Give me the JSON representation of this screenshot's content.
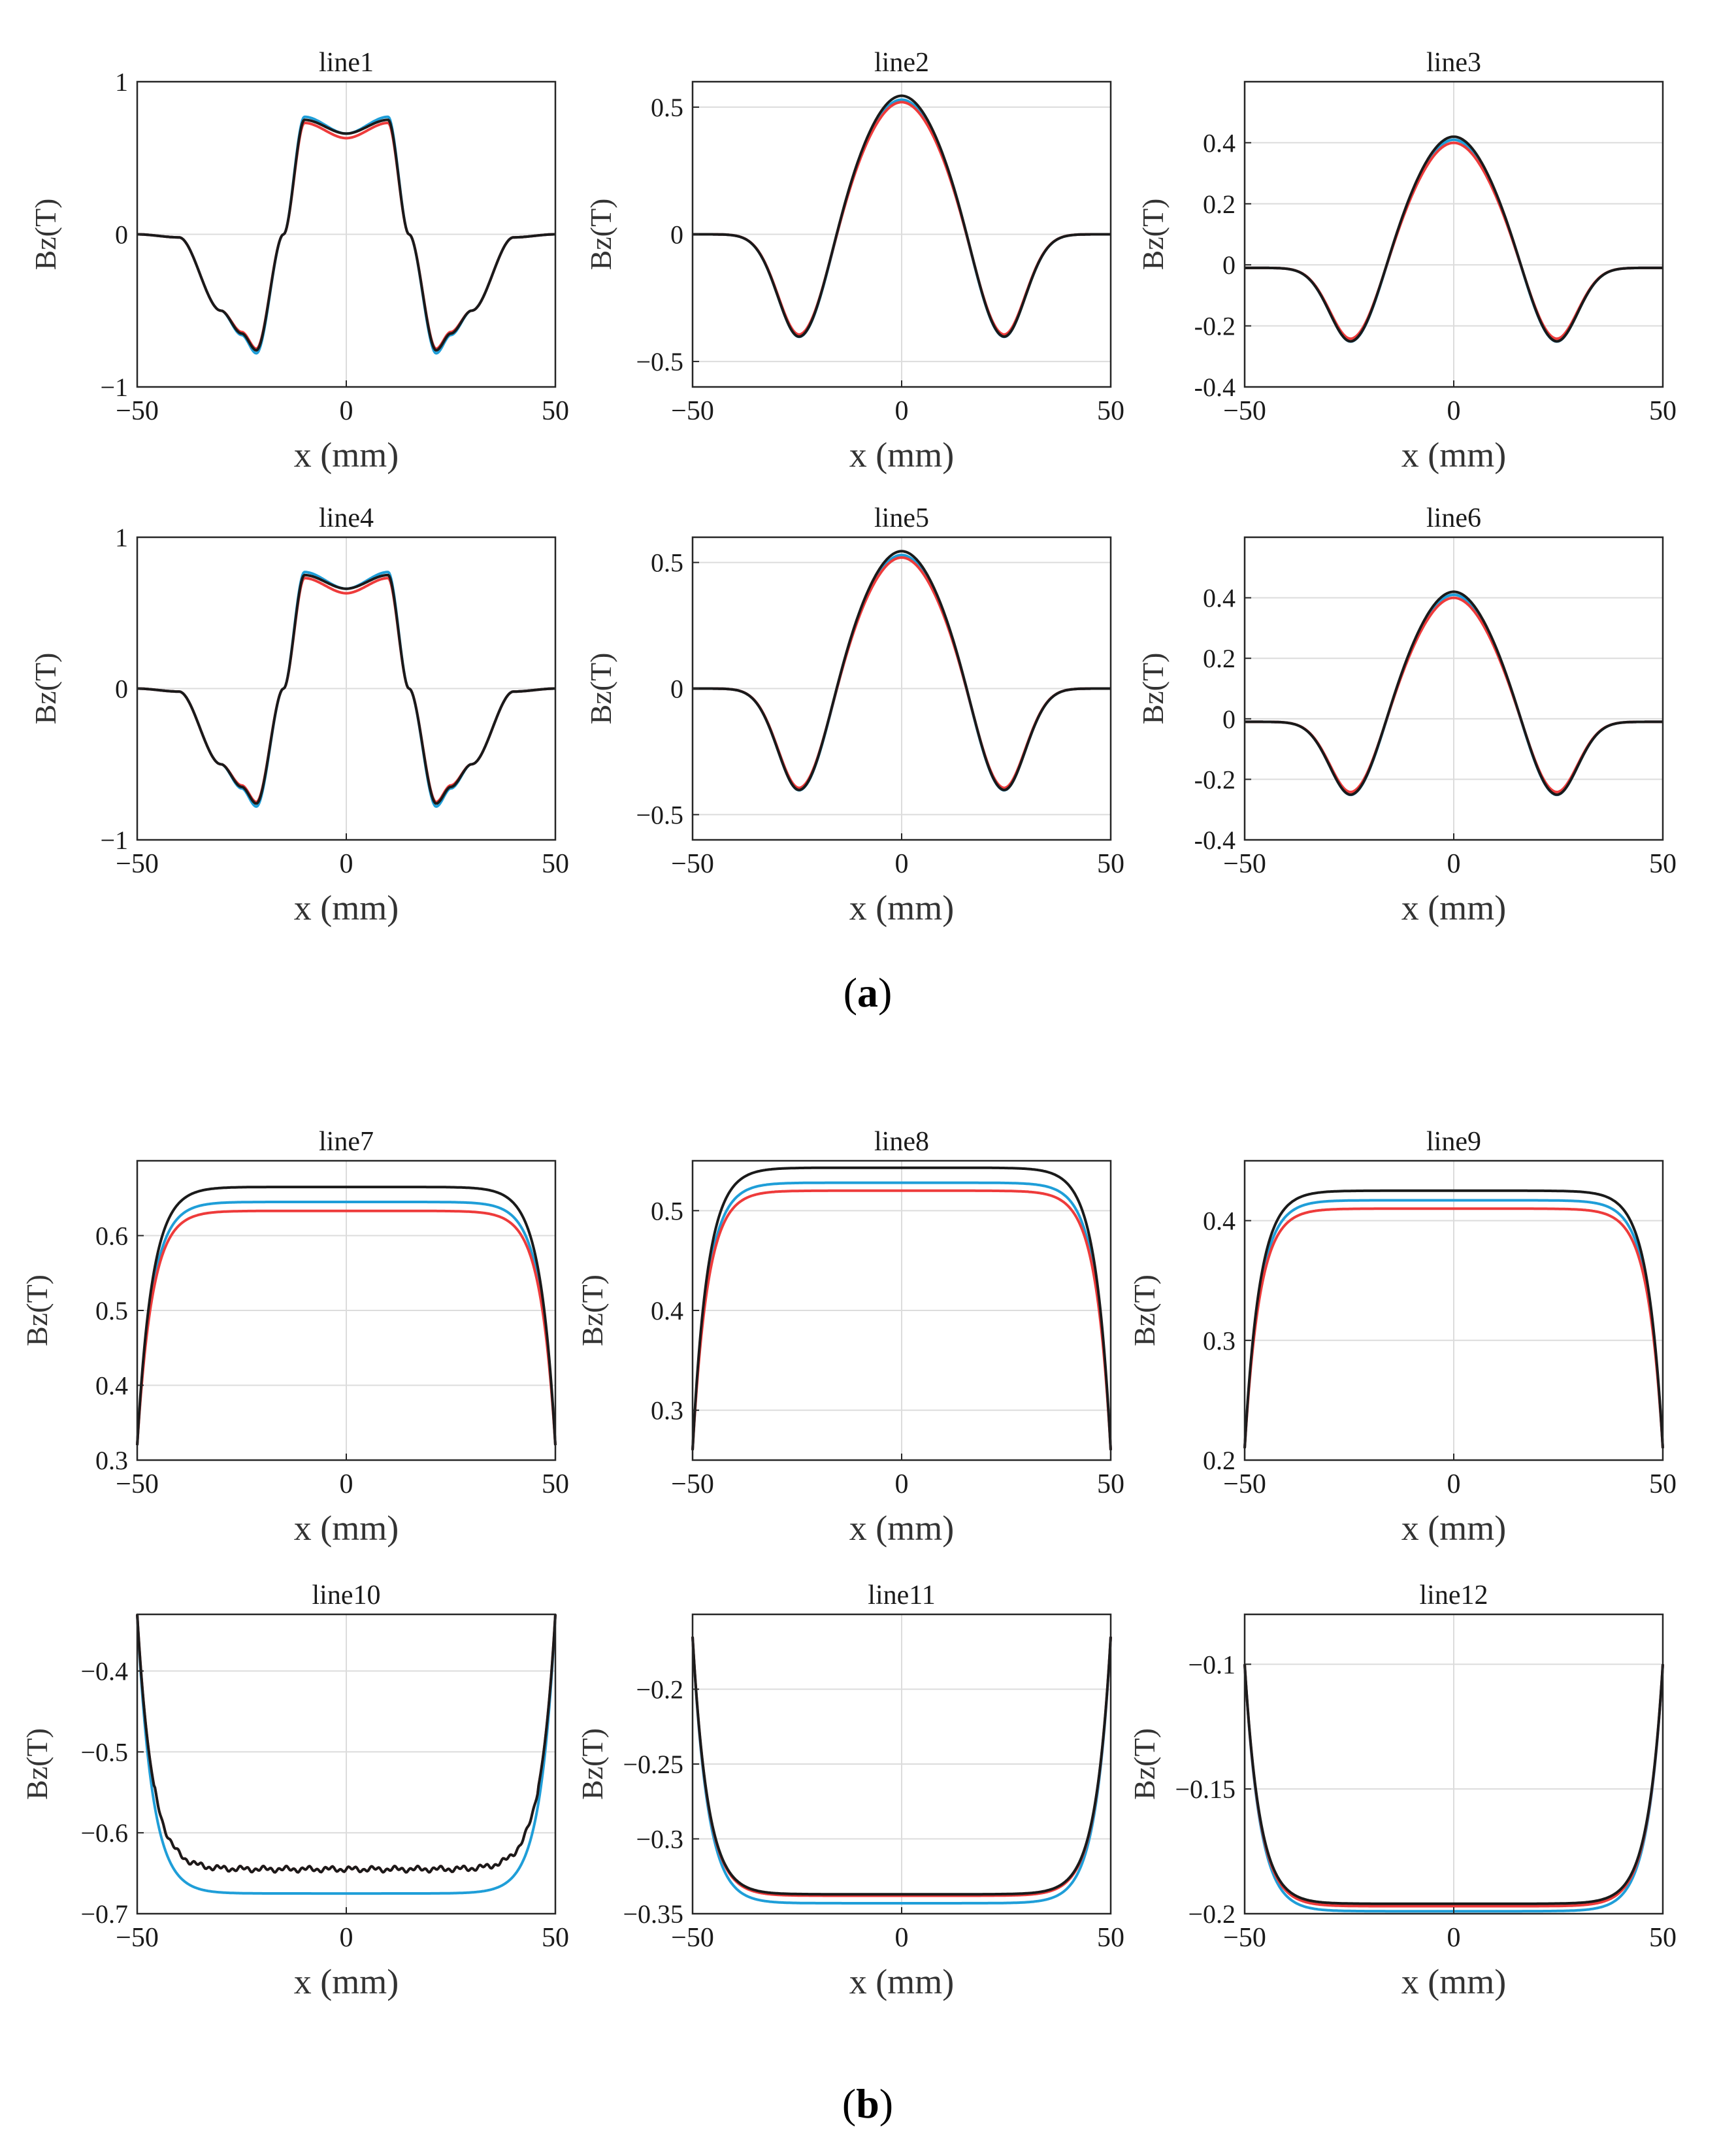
{
  "figure": {
    "panel_labels": {
      "a": "a",
      "b": "b"
    },
    "series_colors": {
      "black": "#1a1a1a",
      "blue": "#1f9ed8",
      "red": "#ee3b3b"
    }
  },
  "chart_data": [
    {
      "id": "line1",
      "type": "line",
      "title": "line1",
      "xlabel": "x (mm)",
      "ylabel": "Bz(T)",
      "xlim": [
        -50,
        50
      ],
      "ylim": [
        -1,
        1
      ],
      "xticks": [
        -50,
        0,
        50
      ],
      "yticks": [
        -1,
        0,
        1
      ],
      "ytick_labels": [
        "−1",
        "0",
        "1"
      ],
      "grid": true,
      "legend": "none",
      "shape": "m",
      "series": [
        {
          "name": "black",
          "x": [
            -50,
            -40,
            -30,
            -25,
            -21.5,
            -15,
            -10,
            0,
            10,
            15,
            21.5,
            25,
            30,
            40,
            50
          ],
          "y": [
            0,
            -0.02,
            -0.5,
            -0.65,
            -0.76,
            0.0,
            0.75,
            0.66,
            0.75,
            0.0,
            -0.76,
            -0.65,
            -0.5,
            -0.02,
            0
          ]
        },
        {
          "name": "blue",
          "x": [
            -50,
            -40,
            -30,
            -25,
            -21.5,
            -15,
            -10,
            0,
            10,
            15,
            21.5,
            25,
            30,
            40,
            50
          ],
          "y": [
            0,
            -0.02,
            -0.5,
            -0.66,
            -0.78,
            0.0,
            0.77,
            0.66,
            0.77,
            0.0,
            -0.78,
            -0.66,
            -0.5,
            -0.02,
            0
          ]
        },
        {
          "name": "red",
          "x": [
            -50,
            -40,
            -30,
            -25,
            -21.5,
            -15,
            -10,
            0,
            10,
            15,
            21.5,
            25,
            30,
            40,
            50
          ],
          "y": [
            0,
            -0.02,
            -0.5,
            -0.64,
            -0.75,
            0.0,
            0.73,
            0.63,
            0.73,
            0.0,
            -0.75,
            -0.64,
            -0.5,
            -0.02,
            0
          ]
        }
      ]
    },
    {
      "id": "line2",
      "type": "line",
      "title": "line2",
      "xlabel": "x (mm)",
      "ylabel": "Bz(T)",
      "xlim": [
        -50,
        50
      ],
      "ylim": [
        -0.6,
        0.6
      ],
      "xticks": [
        -50,
        0,
        50
      ],
      "yticks": [
        -0.5,
        0,
        0.5
      ],
      "ytick_labels": [
        "−0.5",
        "0",
        "0.5"
      ],
      "grid": true,
      "legend": "none",
      "shape": "bell",
      "series": [
        {
          "name": "black",
          "x": [
            -50,
            -24,
            0,
            24,
            50
          ],
          "y": [
            0,
            -0.44,
            0.545,
            -0.44,
            0
          ]
        },
        {
          "name": "blue",
          "x": [
            -50,
            -24,
            0,
            24,
            50
          ],
          "y": [
            0,
            -0.44,
            0.53,
            -0.44,
            0
          ]
        },
        {
          "name": "red",
          "x": [
            -50,
            -24,
            0,
            24,
            50
          ],
          "y": [
            0,
            -0.43,
            0.52,
            -0.43,
            0
          ]
        }
      ]
    },
    {
      "id": "line3",
      "type": "line",
      "title": "line3",
      "xlabel": "x (mm)",
      "ylabel": "Bz(T)",
      "xlim": [
        -50,
        50
      ],
      "ylim": [
        -0.4,
        0.6
      ],
      "xticks": [
        -50,
        0,
        50
      ],
      "yticks": [
        -0.4,
        -0.2,
        0,
        0.2,
        0.4
      ],
      "ytick_labels": [
        "-0.4",
        "-0.2",
        "0",
        "0.2",
        "0.4"
      ],
      "grid": true,
      "legend": "none",
      "shape": "bell",
      "series": [
        {
          "name": "black",
          "x": [
            -50,
            -24,
            0,
            24,
            50
          ],
          "y": [
            -0.01,
            -0.28,
            0.43,
            -0.28,
            -0.01
          ]
        },
        {
          "name": "blue",
          "x": [
            -50,
            -24,
            0,
            24,
            50
          ],
          "y": [
            -0.01,
            -0.28,
            0.42,
            -0.28,
            -0.01
          ]
        },
        {
          "name": "red",
          "x": [
            -50,
            -24,
            0,
            24,
            50
          ],
          "y": [
            -0.01,
            -0.27,
            0.41,
            -0.27,
            -0.01
          ]
        }
      ]
    },
    {
      "id": "line4",
      "type": "line",
      "title": "line4",
      "xlabel": "x (mm)",
      "ylabel": "Bz(T)",
      "xlim": [
        -50,
        50
      ],
      "ylim": [
        -1,
        1
      ],
      "xticks": [
        -50,
        0,
        50
      ],
      "yticks": [
        -1,
        0,
        1
      ],
      "ytick_labels": [
        "−1",
        "0",
        "1"
      ],
      "grid": true,
      "legend": "none",
      "shape": "m",
      "series": [
        {
          "name": "black",
          "x": [
            -50,
            -40,
            -30,
            -25,
            -21.5,
            -15,
            -10,
            0,
            10,
            15,
            21.5,
            25,
            30,
            40,
            50
          ],
          "y": [
            0,
            -0.02,
            -0.5,
            -0.65,
            -0.76,
            0.0,
            0.75,
            0.66,
            0.75,
            0.0,
            -0.76,
            -0.65,
            -0.5,
            -0.02,
            0
          ]
        },
        {
          "name": "blue",
          "x": [
            -50,
            -40,
            -30,
            -25,
            -21.5,
            -15,
            -10,
            0,
            10,
            15,
            21.5,
            25,
            30,
            40,
            50
          ],
          "y": [
            0,
            -0.02,
            -0.5,
            -0.66,
            -0.78,
            0.0,
            0.77,
            0.66,
            0.77,
            0.0,
            -0.78,
            -0.66,
            -0.5,
            -0.02,
            0
          ]
        },
        {
          "name": "red",
          "x": [
            -50,
            -40,
            -30,
            -25,
            -21.5,
            -15,
            -10,
            0,
            10,
            15,
            21.5,
            25,
            30,
            40,
            50
          ],
          "y": [
            0,
            -0.02,
            -0.5,
            -0.64,
            -0.75,
            0.0,
            0.73,
            0.63,
            0.73,
            0.0,
            -0.75,
            -0.64,
            -0.5,
            -0.02,
            0
          ]
        }
      ]
    },
    {
      "id": "line5",
      "type": "line",
      "title": "line5",
      "xlabel": "x (mm)",
      "ylabel": "Bz(T)",
      "xlim": [
        -50,
        50
      ],
      "ylim": [
        -0.6,
        0.6
      ],
      "xticks": [
        -50,
        0,
        50
      ],
      "yticks": [
        -0.5,
        0,
        0.5
      ],
      "ytick_labels": [
        "−0.5",
        "0",
        "0.5"
      ],
      "grid": true,
      "legend": "none",
      "shape": "bell",
      "series": [
        {
          "name": "black",
          "x": [
            -50,
            -24,
            0,
            24,
            50
          ],
          "y": [
            0,
            -0.44,
            0.545,
            -0.44,
            0
          ]
        },
        {
          "name": "blue",
          "x": [
            -50,
            -24,
            0,
            24,
            50
          ],
          "y": [
            0,
            -0.44,
            0.53,
            -0.44,
            0
          ]
        },
        {
          "name": "red",
          "x": [
            -50,
            -24,
            0,
            24,
            50
          ],
          "y": [
            0,
            -0.43,
            0.52,
            -0.43,
            0
          ]
        }
      ]
    },
    {
      "id": "line6",
      "type": "line",
      "title": "line6",
      "xlabel": "x (mm)",
      "ylabel": "Bz(T)",
      "xlim": [
        -50,
        50
      ],
      "ylim": [
        -0.4,
        0.6
      ],
      "xticks": [
        -50,
        0,
        50
      ],
      "yticks": [
        -0.4,
        -0.2,
        0,
        0.2,
        0.4
      ],
      "ytick_labels": [
        "-0.4",
        "-0.2",
        "0",
        "0.2",
        "0.4"
      ],
      "grid": true,
      "legend": "none",
      "shape": "bell",
      "series": [
        {
          "name": "black",
          "x": [
            -50,
            -24,
            0,
            24,
            50
          ],
          "y": [
            -0.01,
            -0.28,
            0.43,
            -0.28,
            -0.01
          ]
        },
        {
          "name": "blue",
          "x": [
            -50,
            -24,
            0,
            24,
            50
          ],
          "y": [
            -0.01,
            -0.28,
            0.42,
            -0.28,
            -0.01
          ]
        },
        {
          "name": "red",
          "x": [
            -50,
            -24,
            0,
            24,
            50
          ],
          "y": [
            -0.01,
            -0.27,
            0.41,
            -0.27,
            -0.01
          ]
        }
      ]
    },
    {
      "id": "line7",
      "type": "line",
      "title": "line7",
      "xlabel": "x (mm)",
      "ylabel": "Bz(T)",
      "xlim": [
        -50,
        50
      ],
      "ylim": [
        0.3,
        0.7
      ],
      "xticks": [
        -50,
        0,
        50
      ],
      "yticks": [
        0.3,
        0.4,
        0.5,
        0.6
      ],
      "ytick_labels": [
        "0.3",
        "0.4",
        "0.5",
        "0.6"
      ],
      "grid": true,
      "legend": "none",
      "shape": "plateau",
      "series": [
        {
          "name": "black",
          "x": [
            -50,
            0,
            50
          ],
          "y": [
            0.32,
            0.665,
            0.32
          ]
        },
        {
          "name": "blue",
          "x": [
            -50,
            0,
            50
          ],
          "y": [
            0.32,
            0.645,
            0.32
          ]
        },
        {
          "name": "red",
          "x": [
            -50,
            0,
            50
          ],
          "y": [
            0.32,
            0.633,
            0.32
          ]
        }
      ]
    },
    {
      "id": "line8",
      "type": "line",
      "title": "line8",
      "xlabel": "x (mm)",
      "ylabel": "Bz(T)",
      "xlim": [
        -50,
        50
      ],
      "ylim": [
        0.25,
        0.55
      ],
      "xticks": [
        -50,
        0,
        50
      ],
      "yticks": [
        0.3,
        0.4,
        0.5
      ],
      "ytick_labels": [
        "0.3",
        "0.4",
        "0.5"
      ],
      "grid": true,
      "legend": "none",
      "shape": "plateau",
      "series": [
        {
          "name": "black",
          "x": [
            -50,
            0,
            50
          ],
          "y": [
            0.26,
            0.543,
            0.26
          ]
        },
        {
          "name": "blue",
          "x": [
            -50,
            0,
            50
          ],
          "y": [
            0.26,
            0.528,
            0.26
          ]
        },
        {
          "name": "red",
          "x": [
            -50,
            0,
            50
          ],
          "y": [
            0.26,
            0.52,
            0.26
          ]
        }
      ]
    },
    {
      "id": "line9",
      "type": "line",
      "title": "line9",
      "xlabel": "x (mm)",
      "ylabel": "Bz(T)",
      "xlim": [
        -50,
        50
      ],
      "ylim": [
        0.2,
        0.45
      ],
      "xticks": [
        -50,
        0,
        50
      ],
      "yticks": [
        0.2,
        0.3,
        0.4
      ],
      "ytick_labels": [
        "0.2",
        "0.3",
        "0.4"
      ],
      "grid": true,
      "legend": "none",
      "shape": "plateau",
      "series": [
        {
          "name": "black",
          "x": [
            -50,
            0,
            50
          ],
          "y": [
            0.21,
            0.425,
            0.21
          ]
        },
        {
          "name": "blue",
          "x": [
            -50,
            0,
            50
          ],
          "y": [
            0.21,
            0.417,
            0.21
          ]
        },
        {
          "name": "red",
          "x": [
            -50,
            0,
            50
          ],
          "y": [
            0.21,
            0.41,
            0.21
          ]
        }
      ]
    },
    {
      "id": "line10",
      "type": "line",
      "title": "line10",
      "xlabel": "x (mm)",
      "ylabel": "Bz(T)",
      "xlim": [
        -50,
        50
      ],
      "ylim": [
        -0.7,
        -0.33
      ],
      "xticks": [
        -50,
        0,
        50
      ],
      "yticks": [
        -0.7,
        -0.6,
        -0.5,
        -0.4
      ],
      "ytick_labels": [
        "−0.7",
        "−0.6",
        "−0.5",
        "−0.4"
      ],
      "grid": true,
      "legend": "none",
      "shape": "trough",
      "series": [
        {
          "name": "black",
          "x": [
            -50,
            0,
            50
          ],
          "y": [
            -0.33,
            -0.645,
            -0.33
          ],
          "noisy": true
        },
        {
          "name": "blue",
          "x": [
            -50,
            0,
            50
          ],
          "y": [
            -0.33,
            -0.675,
            -0.33
          ]
        },
        {
          "name": "red",
          "x": [
            -50,
            0,
            50
          ],
          "y": [
            -0.33,
            -0.645,
            -0.33
          ],
          "noisy": true
        }
      ]
    },
    {
      "id": "line11",
      "type": "line",
      "title": "line11",
      "xlabel": "x (mm)",
      "ylabel": "Bz(T)",
      "xlim": [
        -50,
        50
      ],
      "ylim": [
        -0.35,
        -0.15
      ],
      "xticks": [
        -50,
        0,
        50
      ],
      "yticks": [
        -0.35,
        -0.3,
        -0.25,
        -0.2
      ],
      "ytick_labels": [
        "−0.35",
        "−0.3",
        "−0.25",
        "−0.2"
      ],
      "grid": true,
      "legend": "none",
      "shape": "trough",
      "series": [
        {
          "name": "black",
          "x": [
            -50,
            0,
            50
          ],
          "y": [
            -0.165,
            -0.337,
            -0.165
          ]
        },
        {
          "name": "blue",
          "x": [
            -50,
            0,
            50
          ],
          "y": [
            -0.165,
            -0.343,
            -0.165
          ]
        },
        {
          "name": "red",
          "x": [
            -50,
            0,
            50
          ],
          "y": [
            -0.165,
            -0.338,
            -0.165
          ]
        }
      ]
    },
    {
      "id": "line12",
      "type": "line",
      "title": "line12",
      "xlabel": "x (mm)",
      "ylabel": "Bz(T)",
      "xlim": [
        -50,
        50
      ],
      "ylim": [
        -0.2,
        -0.08
      ],
      "xticks": [
        -50,
        0,
        50
      ],
      "yticks": [
        -0.2,
        -0.15,
        -0.1
      ],
      "ytick_labels": [
        "−0.2",
        "−0.15",
        "−0.1"
      ],
      "grid": true,
      "legend": "none",
      "shape": "trough",
      "series": [
        {
          "name": "black",
          "x": [
            -50,
            0,
            50
          ],
          "y": [
            -0.1,
            -0.196,
            -0.1
          ]
        },
        {
          "name": "blue",
          "x": [
            -50,
            0,
            50
          ],
          "y": [
            -0.1,
            -0.199,
            -0.1
          ]
        },
        {
          "name": "red",
          "x": [
            -50,
            0,
            50
          ],
          "y": [
            -0.1,
            -0.197,
            -0.1
          ]
        }
      ]
    }
  ]
}
